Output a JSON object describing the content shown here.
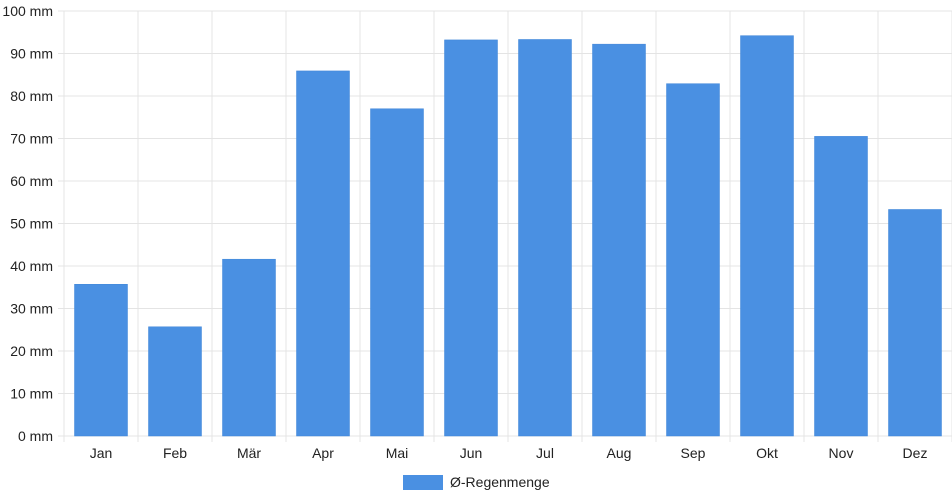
{
  "chart_data": {
    "type": "bar",
    "categories": [
      "Jan",
      "Feb",
      "Mär",
      "Apr",
      "Mai",
      "Jun",
      "Jul",
      "Aug",
      "Sep",
      "Okt",
      "Nov",
      "Dez"
    ],
    "series": [
      {
        "name": "Ø-Regenmenge",
        "values": [
          35.7,
          25.7,
          41.6,
          85.9,
          77.0,
          93.2,
          93.3,
          92.2,
          82.9,
          94.2,
          70.5,
          53.3
        ],
        "color": "#4a90e2"
      }
    ],
    "title": "",
    "xlabel": "",
    "ylabel": "",
    "ylim": [
      0,
      100
    ],
    "y_ticks": [
      "0 mm",
      "10 mm",
      "20 mm",
      "30 mm",
      "40 mm",
      "50 mm",
      "60 mm",
      "70 mm",
      "80 mm",
      "90 mm",
      "100 mm"
    ],
    "grid": true,
    "legend": "bottom-center"
  }
}
